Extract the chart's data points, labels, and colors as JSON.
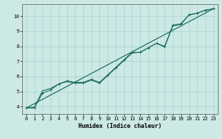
{
  "title": "",
  "xlabel": "Humidex (Indice chaleur)",
  "ylabel": "",
  "bg_color": "#cce9e5",
  "grid_color": "#aad4cf",
  "line_color": "#1a6b5a",
  "xlim": [
    -0.5,
    23.5
  ],
  "ylim": [
    3.5,
    10.8
  ],
  "xticks": [
    0,
    1,
    2,
    3,
    4,
    5,
    6,
    7,
    8,
    9,
    10,
    11,
    12,
    13,
    14,
    15,
    16,
    17,
    18,
    19,
    20,
    21,
    22,
    23
  ],
  "yticks": [
    4,
    5,
    6,
    7,
    8,
    9,
    10
  ],
  "line1_x": [
    0,
    1,
    2,
    3,
    4,
    5,
    6,
    7,
    8,
    9,
    10,
    11,
    12,
    13,
    14,
    15,
    16,
    17,
    18,
    19,
    20,
    21,
    22,
    23
  ],
  "line1_y": [
    3.9,
    3.9,
    4.9,
    5.1,
    5.5,
    5.7,
    5.6,
    5.6,
    5.8,
    5.6,
    6.1,
    6.6,
    7.1,
    7.6,
    7.6,
    7.9,
    8.2,
    8.0,
    9.4,
    9.5,
    10.1,
    10.2,
    10.4,
    10.5
  ],
  "line2_x": [
    0,
    1,
    2,
    3,
    4,
    5,
    6,
    7,
    8,
    9,
    10,
    11,
    12,
    13,
    14,
    15,
    16,
    17,
    18,
    19,
    20,
    21,
    22,
    23
  ],
  "line2_y": [
    3.9,
    3.95,
    5.05,
    5.2,
    5.5,
    5.65,
    5.55,
    5.55,
    5.75,
    5.55,
    6.05,
    6.55,
    7.05,
    7.55,
    7.6,
    7.9,
    8.2,
    7.95,
    9.35,
    9.45,
    10.1,
    10.2,
    10.4,
    10.5
  ],
  "line3_x": [
    0,
    23
  ],
  "line3_y": [
    3.9,
    10.5
  ]
}
